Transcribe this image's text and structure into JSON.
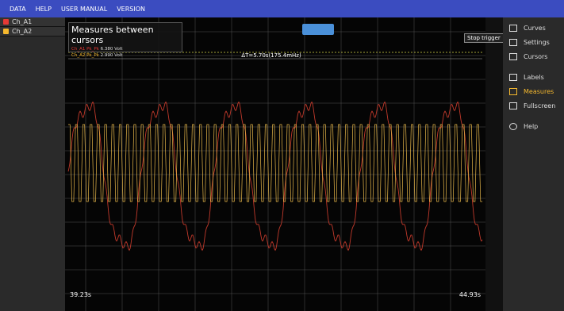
{
  "menu": [
    "DATA",
    "HELP",
    "USER MANUAL",
    "VERSION"
  ],
  "channels": [
    {
      "name": "Ch_A1",
      "color": "#e53935"
    },
    {
      "name": "Ch_A2",
      "color": "#f5b82e"
    }
  ],
  "measures": {
    "title": "Measures between cursors",
    "lines": [
      {
        "channel": "Ch_A1",
        "label": "Pk_Pk",
        "value": "6.380 Volt"
      },
      {
        "channel": "Ch_A2",
        "label": "Pk_Pk",
        "value": "2.990 Volt"
      }
    ]
  },
  "cursor_delta": "ΔT=5.70s(175.4mHz)",
  "cursor_start": "39.23s",
  "cursor_end": "44.93s",
  "trigger_button": "Stop trigger",
  "side_menu": [
    "Curves",
    "Settings",
    "Cursors",
    "Labels",
    "Measures",
    "Fullscreen",
    "Help"
  ]
}
